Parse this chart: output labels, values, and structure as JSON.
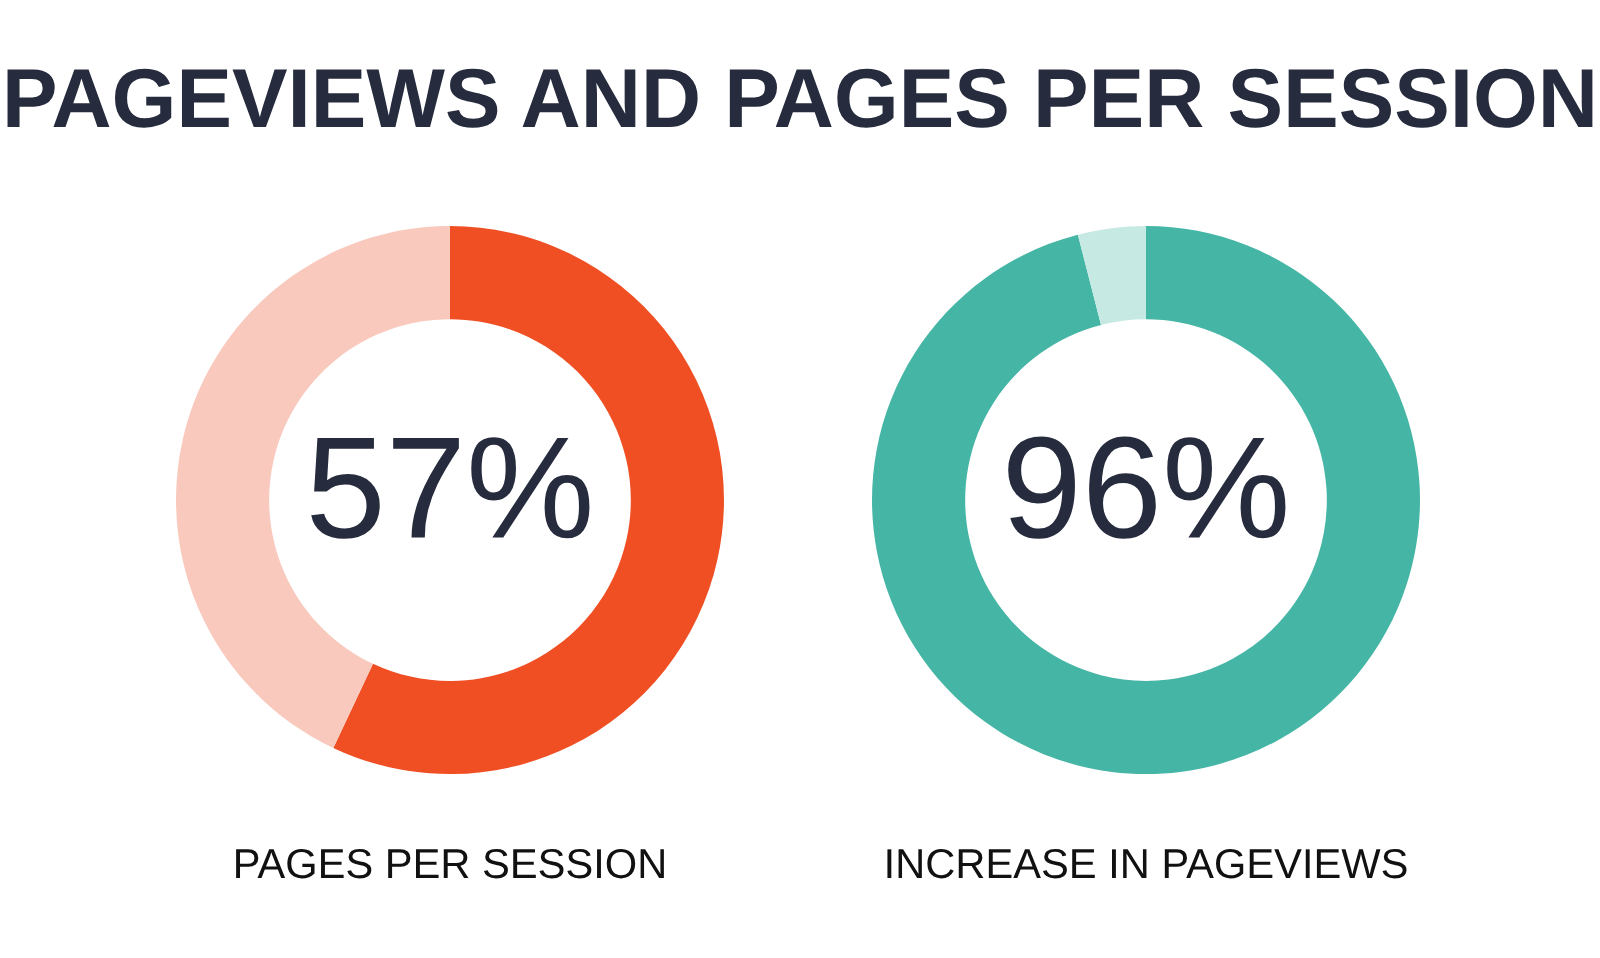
{
  "chart_data": [
    {
      "type": "donut",
      "title": "PAGEVIEWS AND PAGES PER SESSION",
      "categories": [
        null,
        null
      ],
      "values": [
        57,
        43
      ],
      "colors": [
        "#f04e23",
        "#f9c9bd"
      ],
      "value_labels": [
        "57%",
        null
      ],
      "xlabel": "PAGES PER SESSION"
    },
    {
      "type": "donut",
      "categories": [
        null,
        null
      ],
      "values": [
        96,
        4
      ],
      "colors": [
        "#45b5a5",
        "#c7e9e4"
      ],
      "value_labels": [
        "96%",
        null
      ],
      "xlabel": "INCREASE IN PAGEVIEWS"
    }
  ]
}
